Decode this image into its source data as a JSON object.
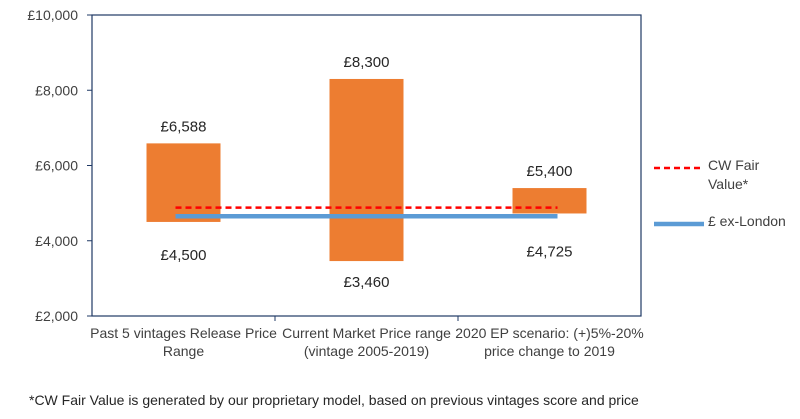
{
  "chart_data": {
    "type": "bar",
    "subtype": "floating-range",
    "categories": [
      [
        "Past 5 vintages Release Price",
        "Range"
      ],
      [
        "Current Market Price range",
        "(vintage 2005-2019)"
      ],
      [
        "2020 EP scenario: (+)5%-20%",
        "price change to 2019"
      ]
    ],
    "ranges": [
      {
        "low": 4500,
        "high": 6588,
        "low_label": "£4,500",
        "high_label": "£6,588"
      },
      {
        "low": 3460,
        "high": 8300,
        "low_label": "£3,460",
        "high_label": "£8,300"
      },
      {
        "low": 4725,
        "high": 5400,
        "low_label": "£4,725",
        "high_label": "£5,400"
      }
    ],
    "lines": [
      {
        "name": "CW Fair Value*",
        "value": 4880,
        "style": "dashed",
        "color": "#ff0000"
      },
      {
        "name": "£ ex-London",
        "value": 4650,
        "style": "solid",
        "color": "#5b9bd5"
      }
    ],
    "bar_color": "#ed7d31",
    "ylim": [
      2000,
      10000
    ],
    "yticks": [
      2000,
      4000,
      6000,
      8000,
      10000
    ],
    "ytick_labels": [
      "£2,000",
      "£4,000",
      "£6,000",
      "£8,000",
      "£10,000"
    ],
    "legend": "right",
    "grid": false
  },
  "legend_items": [
    "CW Fair",
    "Value*",
    "£ ex-London"
  ],
  "footnote": "*CW Fair Value is generated by our proprietary model, based on previous vintages score and price"
}
